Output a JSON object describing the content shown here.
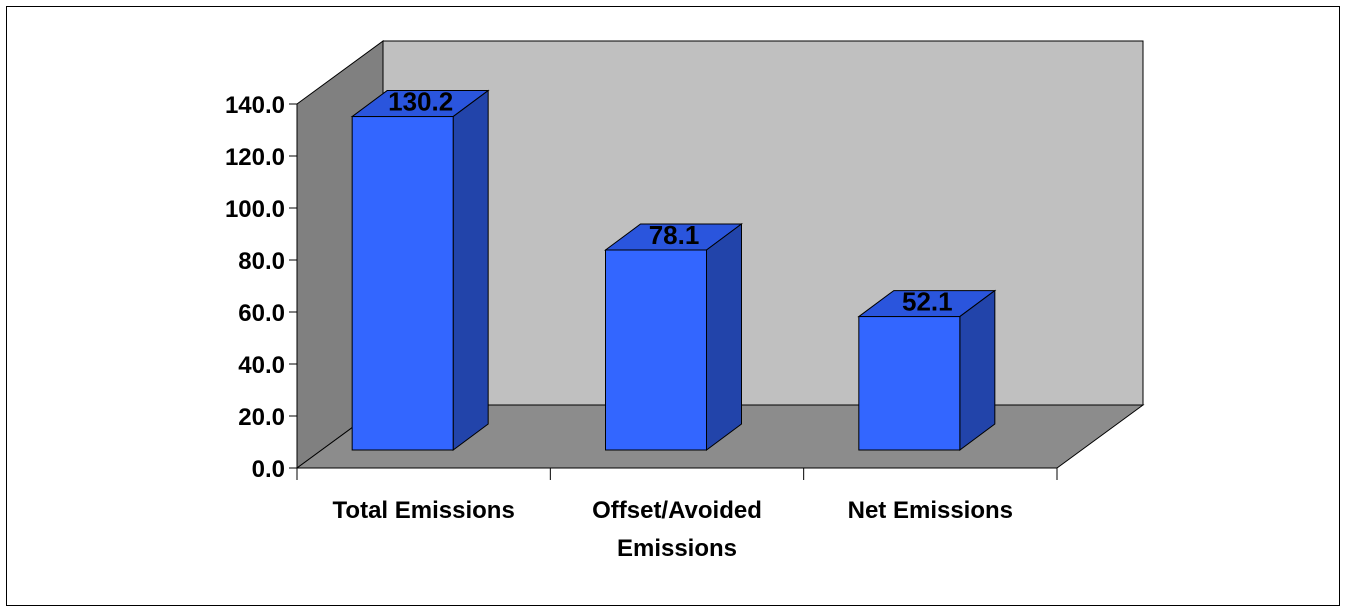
{
  "chart_data": {
    "type": "bar",
    "style": "3d-column",
    "categories": [
      "Total Emissions",
      "Offset/Avoided Emissions",
      "Net Emissions"
    ],
    "category_lines": [
      [
        "Total Emissions"
      ],
      [
        "Offset/Avoided",
        "Emissions"
      ],
      [
        "Net Emissions"
      ]
    ],
    "values": [
      130.2,
      78.1,
      52.1
    ],
    "data_labels": [
      "130.2",
      "78.1",
      "52.1"
    ],
    "ylim": [
      0,
      140
    ],
    "yticks": [
      "0.0",
      "20.0",
      "40.0",
      "60.0",
      "80.0",
      "100.0",
      "120.0",
      "140.0"
    ],
    "title": "",
    "xlabel": "",
    "ylabel": "",
    "legend": "none",
    "grid": false,
    "colors": {
      "bar_front": "#3366ff",
      "bar_side": "#2244aa",
      "bar_top": "#2a55dd",
      "back_wall": "#c0c0c0",
      "side_wall": "#808080",
      "floor": "#8c8c8c"
    }
  }
}
